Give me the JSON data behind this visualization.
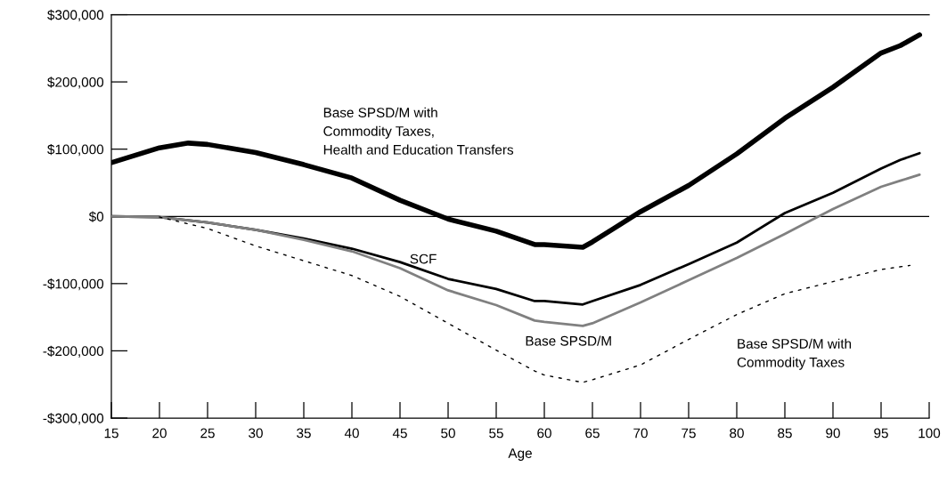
{
  "chart_data": {
    "type": "line",
    "xlabel": "Age",
    "xlim": [
      15,
      100
    ],
    "xticks": [
      15,
      20,
      25,
      30,
      35,
      40,
      45,
      50,
      55,
      60,
      65,
      70,
      75,
      80,
      85,
      90,
      95,
      100
    ],
    "ylim": [
      -300000,
      300000
    ],
    "yticks": [
      {
        "value": -300000,
        "label": "-$300,000"
      },
      {
        "value": -200000,
        "label": "-$200,000"
      },
      {
        "value": -100000,
        "label": "-$100,000"
      },
      {
        "value": 0,
        "label": "$0"
      },
      {
        "value": 100000,
        "label": "$100,000"
      },
      {
        "value": 200000,
        "label": "$200,000"
      },
      {
        "value": 300000,
        "label": "$300,000"
      }
    ],
    "grid": false,
    "legend": false,
    "marker": "none",
    "ref_lines": [
      {
        "axis": "y",
        "value": 0,
        "color": "#000000",
        "line_style": "solid"
      }
    ],
    "series": [
      {
        "name": "Base SPSD/M with\nCommodity Taxes,\nHealth and Education Transfers",
        "color": "#000000",
        "line_style": "solid",
        "x": [
          15,
          20,
          23,
          25,
          30,
          35,
          40,
          45,
          50,
          55,
          59,
          60,
          64,
          65,
          70,
          75,
          80,
          85,
          90,
          95,
          97,
          99
        ],
        "values": [
          80000,
          102000,
          109000,
          107000,
          95000,
          77000,
          57000,
          24000,
          -4000,
          -22000,
          -42000,
          -42000,
          -46000,
          -38000,
          7000,
          46000,
          93000,
          146000,
          192000,
          243000,
          254000,
          270000
        ]
      },
      {
        "name": "SCF",
        "color": "#000000",
        "line_style": "solid",
        "x": [
          15,
          20,
          25,
          30,
          35,
          40,
          45,
          50,
          55,
          59,
          60,
          64,
          65,
          70,
          75,
          80,
          85,
          90,
          95,
          97,
          99
        ],
        "values": [
          0,
          -1000,
          -9000,
          -20000,
          -33000,
          -48000,
          -68000,
          -93000,
          -108000,
          -126000,
          -126000,
          -131000,
          -126000,
          -102000,
          -71000,
          -39000,
          5000,
          35000,
          71000,
          84000,
          94000
        ]
      },
      {
        "name": "Base SPSD/M",
        "color": "#808080",
        "line_style": "solid",
        "x": [
          15,
          20,
          25,
          30,
          35,
          40,
          45,
          50,
          55,
          59,
          60,
          64,
          65,
          70,
          75,
          80,
          85,
          90,
          95,
          97,
          99
        ],
        "values": [
          0,
          -1000,
          -9000,
          -20000,
          -35000,
          -52000,
          -77000,
          -110000,
          -132000,
          -155000,
          -157000,
          -163000,
          -159000,
          -128000,
          -95000,
          -62000,
          -26000,
          11000,
          44000,
          53000,
          62000
        ]
      },
      {
        "name": "Base SPSD/M with\nCommodity Taxes",
        "color": "#000000",
        "line_style": "dotted",
        "x": [
          20,
          25,
          30,
          35,
          40,
          45,
          50,
          55,
          59,
          60,
          64,
          65,
          70,
          75,
          80,
          85,
          90,
          95,
          98
        ],
        "values": [
          -1000,
          -18000,
          -44000,
          -66000,
          -88000,
          -119000,
          -159000,
          -199000,
          -230000,
          -236000,
          -247000,
          -243000,
          -221000,
          -183000,
          -146000,
          -115000,
          -97000,
          -79000,
          -73000
        ]
      }
    ]
  }
}
